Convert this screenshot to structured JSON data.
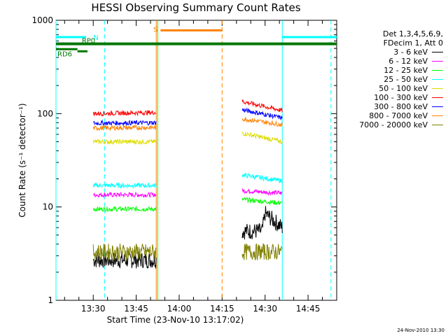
{
  "chart_data": {
    "type": "line",
    "title": "HESSI Observing Summary Count Rates",
    "xlabel": "Start Time (23-Nov-10 13:17:02)",
    "ylabel": "Count Rate (s⁻¹ detector⁻¹)",
    "yscale": "log",
    "ylim": [
      1,
      1000
    ],
    "y_ticks": [
      "1",
      "10",
      "100",
      "1000"
    ],
    "xlim_minutes_after_1317": [
      0,
      98
    ],
    "x_ticks": [
      {
        "label": "13:30",
        "t": 13
      },
      {
        "label": "13:45",
        "t": 28
      },
      {
        "label": "14:00",
        "t": 43
      },
      {
        "label": "14:15",
        "t": 58
      },
      {
        "label": "14:30",
        "t": 73
      },
      {
        "label": "14:45",
        "t": 88
      }
    ],
    "legend_header": [
      "Det 1,3,4,5,6,9,",
      "FDecim 1, Att 0"
    ],
    "legend_position": "top-right",
    "series": [
      {
        "name": "3 - 6 keV",
        "color": "#000000",
        "segments": [
          {
            "t": [
              13,
              35
            ],
            "y": [
              2.7,
              2.7
            ]
          },
          {
            "t": [
              65,
              72,
              73,
              79
            ],
            "y": [
              5.5,
              5.5,
              8.5,
              6.0
            ]
          }
        ]
      },
      {
        "name": "6 - 12 keV",
        "color": "#ff00ff",
        "segments": [
          {
            "t": [
              13,
              35
            ],
            "y": [
              13.5,
              13.5
            ]
          },
          {
            "t": [
              65,
              79
            ],
            "y": [
              15,
              14
            ]
          }
        ]
      },
      {
        "name": "12 - 25 keV",
        "color": "#00ff00",
        "segments": [
          {
            "t": [
              13,
              35
            ],
            "y": [
              9.5,
              9.5
            ]
          },
          {
            "t": [
              65,
              79
            ],
            "y": [
              12,
              11
            ]
          }
        ]
      },
      {
        "name": "25 - 50 keV",
        "color": "#00ffff",
        "segments": [
          {
            "t": [
              13,
              35
            ],
            "y": [
              17,
              17
            ]
          },
          {
            "t": [
              65,
              79
            ],
            "y": [
              22,
              19
            ]
          }
        ]
      },
      {
        "name": "50 - 100 keV",
        "color": "#dddd00",
        "segments": [
          {
            "t": [
              13,
              35
            ],
            "y": [
              50,
              50
            ]
          },
          {
            "t": [
              65,
              79
            ],
            "y": [
              62,
              50
            ]
          }
        ]
      },
      {
        "name": "100 - 300 keV",
        "color": "#ff0000",
        "segments": [
          {
            "t": [
              13,
              35
            ],
            "y": [
              100,
              103
            ]
          },
          {
            "t": [
              65,
              79
            ],
            "y": [
              135,
              108
            ]
          }
        ]
      },
      {
        "name": "300 - 800 keV",
        "color": "#0000ff",
        "segments": [
          {
            "t": [
              13,
              35
            ],
            "y": [
              79,
              80
            ]
          },
          {
            "t": [
              65,
              79
            ],
            "y": [
              110,
              90
            ]
          }
        ]
      },
      {
        "name": "800 - 7000 keV",
        "color": "#ff8000",
        "segments": [
          {
            "t": [
              13,
              35
            ],
            "y": [
              70,
              71
            ]
          },
          {
            "t": [
              65,
              79
            ],
            "y": [
              88,
              76
            ]
          }
        ]
      },
      {
        "name": "7000 - 20000 keV",
        "color": "#808000",
        "segments": [
          {
            "t": [
              13,
              35
            ],
            "y": [
              3.3,
              3.3
            ]
          },
          {
            "t": [
              65,
              79
            ],
            "y": [
              3.3,
              3.3
            ]
          }
        ]
      }
    ],
    "flags": [
      {
        "label": "N",
        "color": "#00ffff",
        "intervals": [
          [
            0,
            10.5
          ],
          [
            79,
            98
          ]
        ],
        "y": 660
      },
      {
        "label": "S",
        "color": "#ff8000",
        "intervals": [
          [
            36.5,
            58
          ]
        ],
        "y": 780
      },
      {
        "label": "RP0",
        "color": "#007700",
        "intervals": [
          [
            0,
            98
          ]
        ],
        "y": 560
      },
      {
        "label": "RD6",
        "color": "#007700",
        "intervals": [
          [
            0,
            7.5
          ],
          [
            7.5,
            11
          ]
        ],
        "y": 490
      }
    ],
    "vertical_markers": [
      {
        "t": 0,
        "color": "#00ffff",
        "style": "solid"
      },
      {
        "t": 17,
        "color": "#00ffff",
        "style": "dashed"
      },
      {
        "t": 35,
        "color": "#ff8000",
        "style": "solid"
      },
      {
        "t": 35.5,
        "color": "#00ff00",
        "style": "solid"
      },
      {
        "t": 58,
        "color": "#ff8000",
        "style": "dashed"
      },
      {
        "t": 79,
        "color": "#00ffff",
        "style": "solid"
      },
      {
        "t": 96,
        "color": "#00ffff",
        "style": "dashed"
      }
    ]
  },
  "footer": {
    "timestamp": "24-Nov-2010 13:30"
  }
}
